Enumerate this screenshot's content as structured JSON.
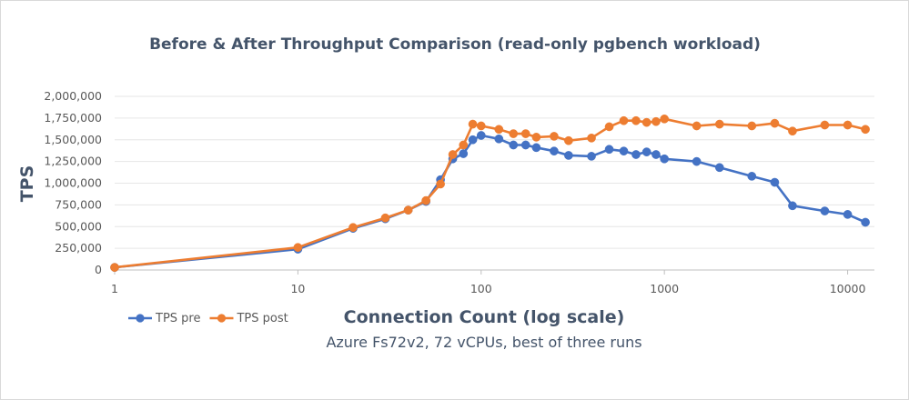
{
  "chart_data": {
    "type": "line",
    "title": "Before & After Throughput Comparison (read-only pgbench workload)",
    "xlabel": "Connection Count (log scale)",
    "ylabel": "TPS",
    "subtitle": "Azure Fs72v2, 72 vCPUs, best of three runs",
    "x_scale": "log",
    "xlim": [
      1,
      14000
    ],
    "ylim": [
      0,
      2000000
    ],
    "x_ticks": [
      1,
      10,
      100,
      1000,
      10000
    ],
    "x_tick_labels": [
      "1",
      "10",
      "100",
      "1000",
      "10000"
    ],
    "y_ticks": [
      0,
      250000,
      500000,
      750000,
      1000000,
      1250000,
      1500000,
      1750000,
      2000000
    ],
    "y_tick_labels": [
      "0",
      "250,000",
      "500,000",
      "750,000",
      "1,000,000",
      "1,250,000",
      "1,500,000",
      "1,750,000",
      "2,000,000"
    ],
    "grid": "horizontal",
    "legend_position": "bottom-left",
    "series": [
      {
        "name": "TPS pre",
        "color": "#4472c4",
        "points": [
          [
            1,
            30000
          ],
          [
            10,
            240000
          ],
          [
            20,
            480000
          ],
          [
            30,
            590000
          ],
          [
            40,
            690000
          ],
          [
            50,
            790000
          ],
          [
            60,
            1040000
          ],
          [
            70,
            1280000
          ],
          [
            80,
            1340000
          ],
          [
            90,
            1500000
          ],
          [
            100,
            1550000
          ],
          [
            125,
            1510000
          ],
          [
            150,
            1440000
          ],
          [
            175,
            1440000
          ],
          [
            200,
            1410000
          ],
          [
            250,
            1370000
          ],
          [
            300,
            1320000
          ],
          [
            400,
            1310000
          ],
          [
            500,
            1390000
          ],
          [
            600,
            1370000
          ],
          [
            700,
            1330000
          ],
          [
            800,
            1360000
          ],
          [
            900,
            1330000
          ],
          [
            1000,
            1280000
          ],
          [
            1500,
            1250000
          ],
          [
            2000,
            1180000
          ],
          [
            3000,
            1080000
          ],
          [
            4000,
            1010000
          ],
          [
            5000,
            740000
          ],
          [
            7500,
            680000
          ],
          [
            10000,
            640000
          ],
          [
            12500,
            550000
          ]
        ]
      },
      {
        "name": "TPS post",
        "color": "#ed7d31",
        "points": [
          [
            1,
            30000
          ],
          [
            10,
            260000
          ],
          [
            20,
            490000
          ],
          [
            30,
            600000
          ],
          [
            40,
            690000
          ],
          [
            50,
            800000
          ],
          [
            60,
            990000
          ],
          [
            70,
            1330000
          ],
          [
            80,
            1440000
          ],
          [
            90,
            1680000
          ],
          [
            100,
            1660000
          ],
          [
            125,
            1620000
          ],
          [
            150,
            1570000
          ],
          [
            175,
            1570000
          ],
          [
            200,
            1530000
          ],
          [
            250,
            1540000
          ],
          [
            300,
            1490000
          ],
          [
            400,
            1520000
          ],
          [
            500,
            1650000
          ],
          [
            600,
            1720000
          ],
          [
            700,
            1720000
          ],
          [
            800,
            1700000
          ],
          [
            900,
            1710000
          ],
          [
            1000,
            1740000
          ],
          [
            1500,
            1660000
          ],
          [
            2000,
            1680000
          ],
          [
            3000,
            1660000
          ],
          [
            4000,
            1690000
          ],
          [
            5000,
            1600000
          ],
          [
            7500,
            1670000
          ],
          [
            10000,
            1670000
          ],
          [
            12500,
            1620000
          ]
        ]
      }
    ]
  }
}
